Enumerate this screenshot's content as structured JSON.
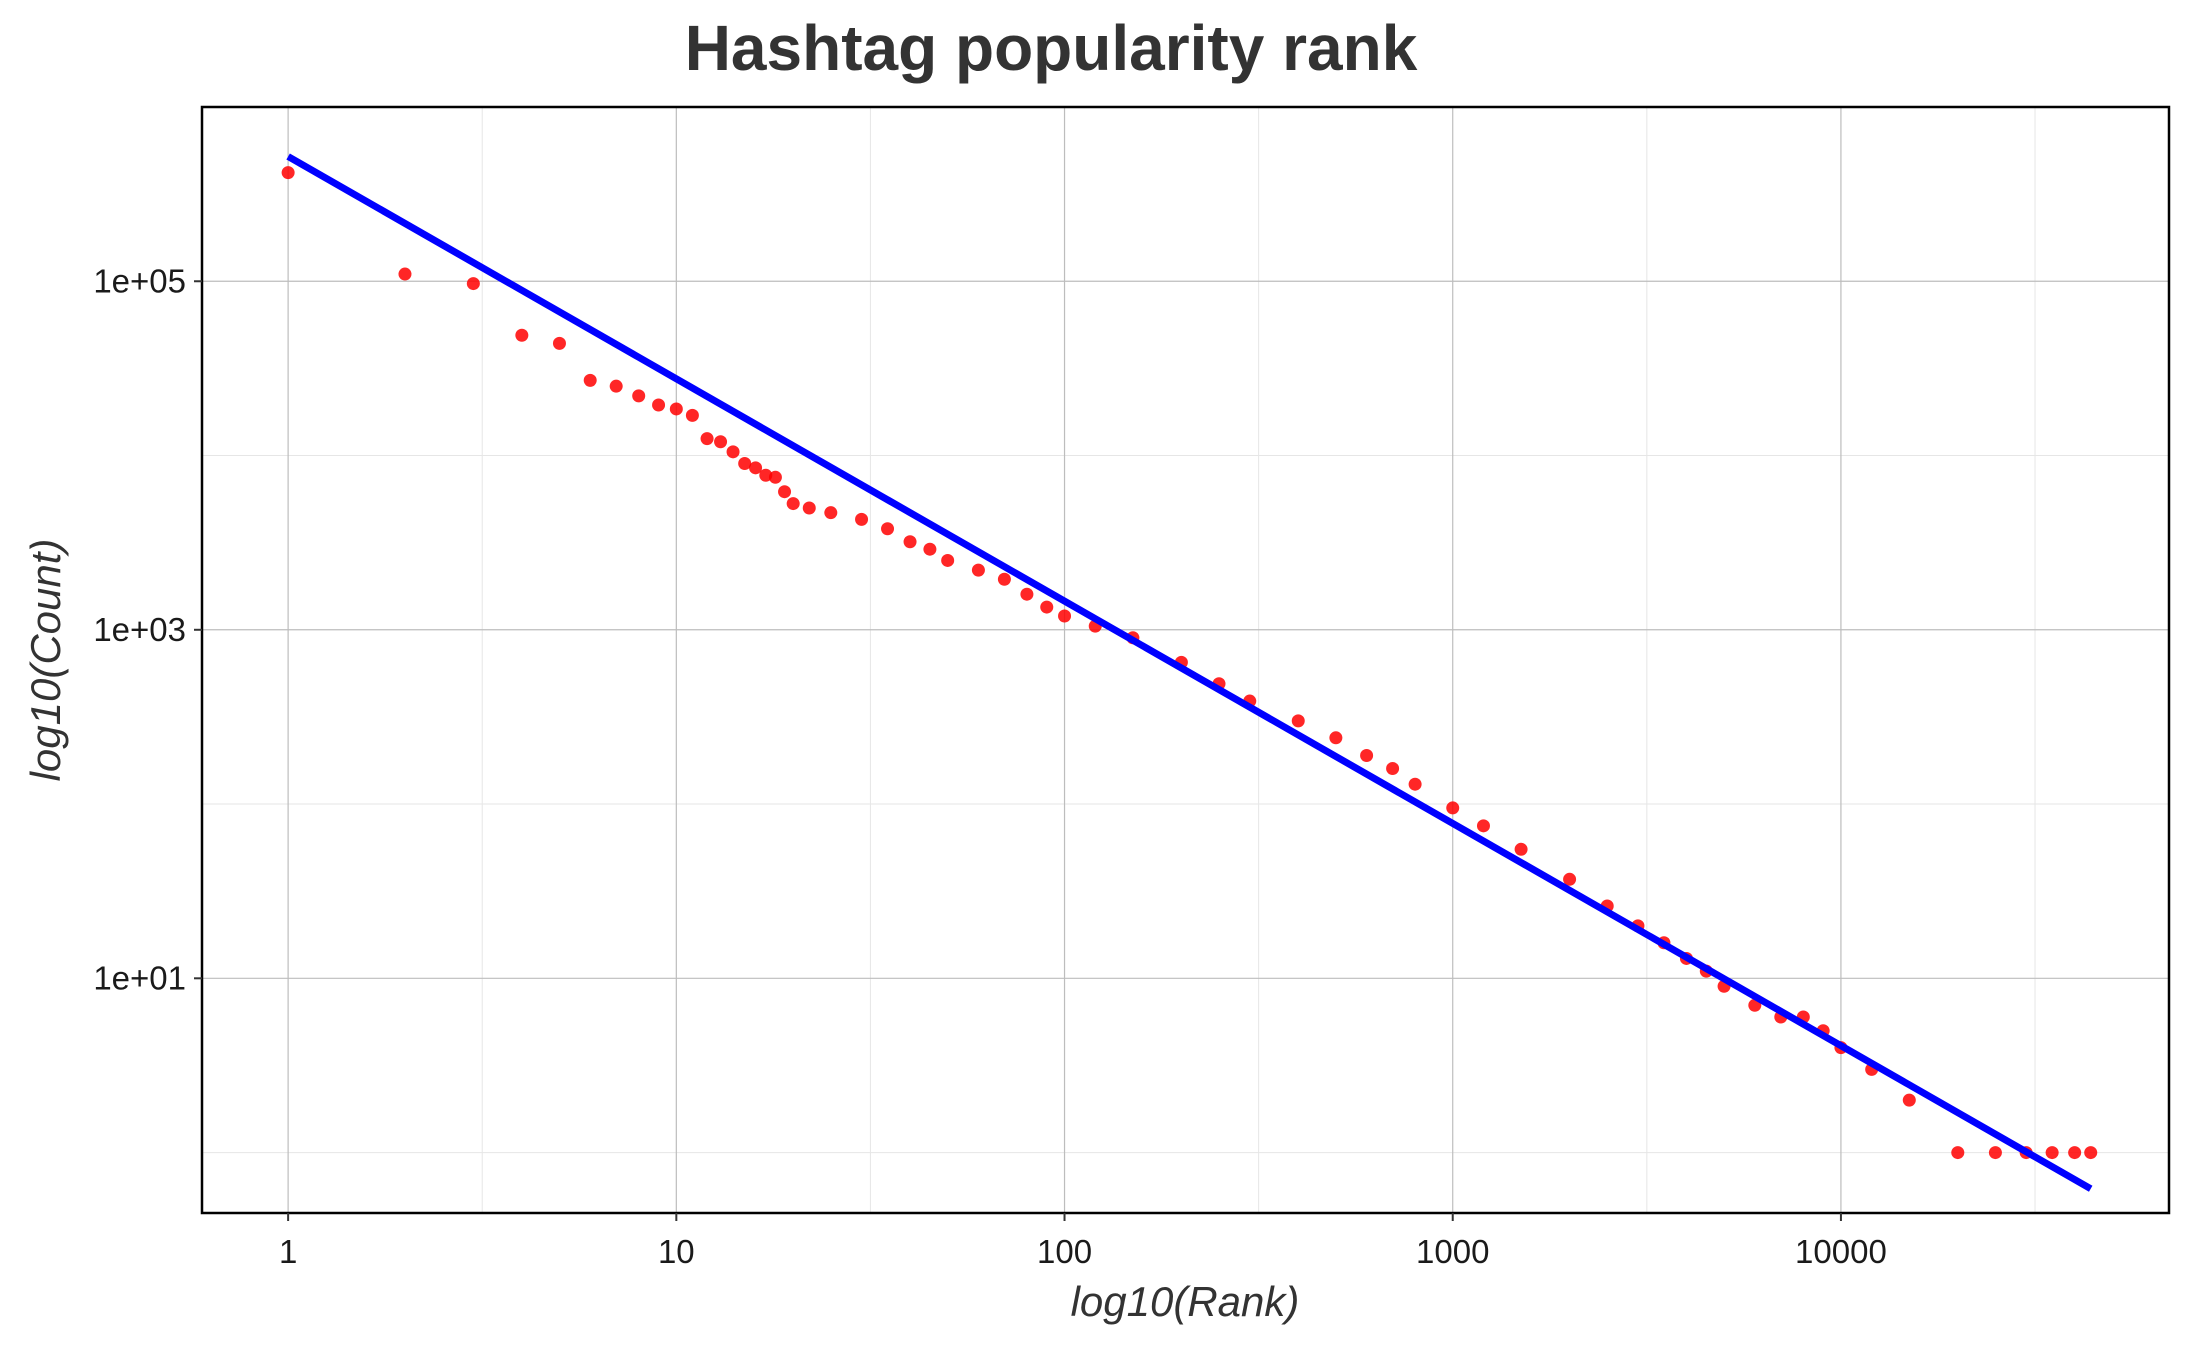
{
  "chart_data": {
    "type": "scatter",
    "title": "Hashtag popularity rank",
    "xlabel": "log10(Rank)",
    "ylabel": "log10(Count)",
    "x_scale": "log10",
    "y_scale": "log10",
    "xlim": [
      0.6,
      70000
    ],
    "ylim": [
      0.45,
      1000000
    ],
    "x_ticks": [
      {
        "value": 1,
        "label": "1"
      },
      {
        "value": 10,
        "label": "10"
      },
      {
        "value": 100,
        "label": "100"
      },
      {
        "value": 1000,
        "label": "1000"
      },
      {
        "value": 10000,
        "label": "10000"
      }
    ],
    "y_ticks": [
      {
        "value": 10,
        "label": "1e+01"
      },
      {
        "value": 1000,
        "label": "1e+03"
      },
      {
        "value": 100000,
        "label": "1e+05"
      }
    ],
    "grid": true,
    "legend": "none",
    "colors": {
      "points": "#ff0000",
      "fit_line": "#0000ff",
      "title": "#333333"
    },
    "series": [
      {
        "kind": "points",
        "x": [
          1,
          2,
          3,
          4,
          5,
          6,
          7,
          8,
          9,
          10,
          11,
          12,
          13,
          14,
          15,
          16,
          17,
          18,
          19,
          20,
          22,
          25,
          30,
          35,
          40,
          45,
          50,
          60,
          70,
          80,
          90,
          100,
          120,
          150,
          200,
          250,
          300,
          400,
          500,
          600,
          700,
          800,
          1000,
          1200,
          1500,
          2000,
          2500,
          3000,
          3500,
          4000,
          4500,
          5000,
          6000,
          7000,
          8000,
          9000,
          10000,
          12000,
          15000,
          20000,
          25000,
          30000,
          35000,
          40000,
          44000
        ],
        "y": [
          420000,
          110000,
          97000,
          49000,
          44000,
          27000,
          25000,
          22000,
          19500,
          18500,
          17000,
          12500,
          12000,
          10500,
          9000,
          8500,
          7700,
          7500,
          6200,
          5300,
          5000,
          4700,
          4300,
          3800,
          3200,
          2900,
          2500,
          2200,
          1950,
          1600,
          1350,
          1200,
          1050,
          900,
          650,
          490,
          390,
          300,
          240,
          190,
          160,
          130,
          95,
          75,
          55,
          37,
          26,
          20,
          16,
          13,
          11,
          9,
          7,
          6,
          6,
          5,
          4,
          3,
          2,
          1,
          1,
          1,
          1,
          1,
          1
        ]
      },
      {
        "kind": "fit_line",
        "x": [
          1,
          44000
        ],
        "y": [
          520000,
          0.62
        ]
      }
    ]
  }
}
